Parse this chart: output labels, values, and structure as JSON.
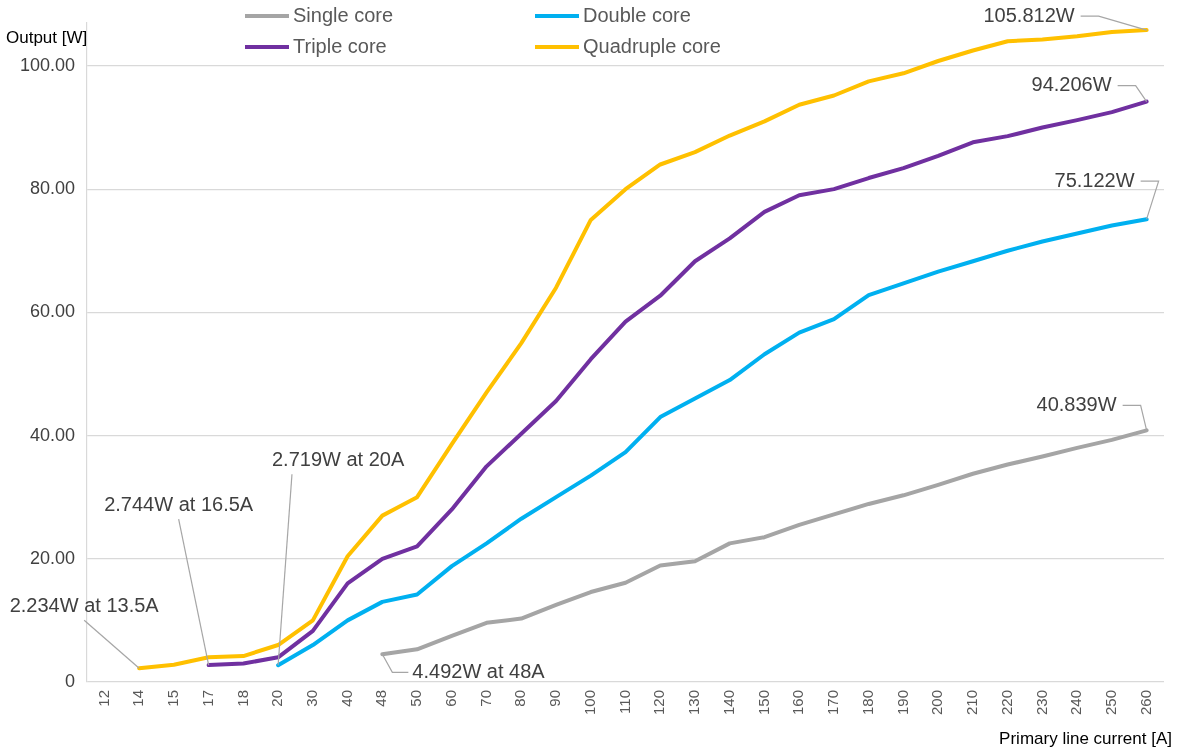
{
  "chart_data": {
    "type": "line",
    "xlabel": "Primary line current [A]",
    "ylabel": "Output [W]",
    "categories": [
      "12",
      "14",
      "15",
      "17",
      "18",
      "20",
      "30",
      "40",
      "48",
      "50",
      "60",
      "70",
      "80",
      "90",
      "100",
      "110",
      "120",
      "130",
      "140",
      "150",
      "160",
      "170",
      "180",
      "190",
      "200",
      "210",
      "220",
      "230",
      "240",
      "250",
      "260"
    ],
    "series": [
      {
        "name": "Single core",
        "color": "#a5a5a5",
        "values": [
          null,
          null,
          null,
          null,
          null,
          null,
          null,
          null,
          4.492,
          5.3,
          7.5,
          9.6,
          10.3,
          12.5,
          14.6,
          16.1,
          18.9,
          19.6,
          22.5,
          23.5,
          25.5,
          27.2,
          28.9,
          30.3,
          32,
          33.8,
          35.3,
          36.6,
          38,
          39.3,
          40.839
        ]
      },
      {
        "name": "Double core",
        "color": "#00b0f0",
        "values": [
          null,
          null,
          null,
          null,
          null,
          2.719,
          6,
          10,
          13,
          14.2,
          18.8,
          22.5,
          26.5,
          30,
          33.5,
          37.3,
          43,
          46,
          49,
          53.2,
          56.7,
          58.9,
          62.8,
          64.7,
          66.6,
          68.3,
          70,
          71.5,
          72.8,
          74.1,
          75.122
        ]
      },
      {
        "name": "Triple core",
        "color": "#7030a0",
        "values": [
          null,
          null,
          null,
          2.744,
          3,
          4,
          8.3,
          16,
          20,
          22,
          28,
          35,
          40.3,
          45.6,
          52.4,
          58.5,
          62.7,
          68.3,
          72,
          76.3,
          79,
          80,
          81.8,
          83.4,
          85.4,
          87.6,
          88.6,
          90,
          91.2,
          92.5,
          94.206
        ]
      },
      {
        "name": "Quadruple core",
        "color": "#ffc000",
        "values": [
          null,
          2.234,
          2.8,
          4,
          4.2,
          6,
          10,
          20.4,
          27,
          30,
          38.6,
          47,
          55,
          64,
          75,
          80,
          84,
          86,
          88.7,
          91,
          93.7,
          95.2,
          97.5,
          98.8,
          100.8,
          102.5,
          104,
          104.3,
          104.8,
          105.5,
          105.812
        ]
      }
    ],
    "ylim": [
      0,
      107
    ],
    "yticks": [
      {
        "value": 0,
        "label": "0"
      },
      {
        "value": 20,
        "label": "20.00"
      },
      {
        "value": 40,
        "label": "40.00"
      },
      {
        "value": 60,
        "label": "60.00"
      },
      {
        "value": 80,
        "label": "80.00"
      },
      {
        "value": 100,
        "label": "100.00"
      }
    ],
    "grid": "y",
    "legend": "top",
    "marker": "none",
    "line_style": "solid",
    "annotations": [
      {
        "text": "2.234W at 13.5A",
        "x": "14",
        "y": 2.234
      },
      {
        "text": "2.744W at 16.5A",
        "x": "17",
        "y": 2.744
      },
      {
        "text": "2.719W at 20A",
        "x": "20",
        "y": 2.719
      },
      {
        "text": "4.492W at 48A",
        "x": "48",
        "y": 4.492
      },
      {
        "text": "40.839W",
        "x": "260",
        "y": 40.839
      },
      {
        "text": "75.122W",
        "x": "260",
        "y": 75.122
      },
      {
        "text": "94.206W",
        "x": "260",
        "y": 94.206
      },
      {
        "text": "105.812W",
        "x": "260",
        "y": 105.812
      }
    ]
  }
}
